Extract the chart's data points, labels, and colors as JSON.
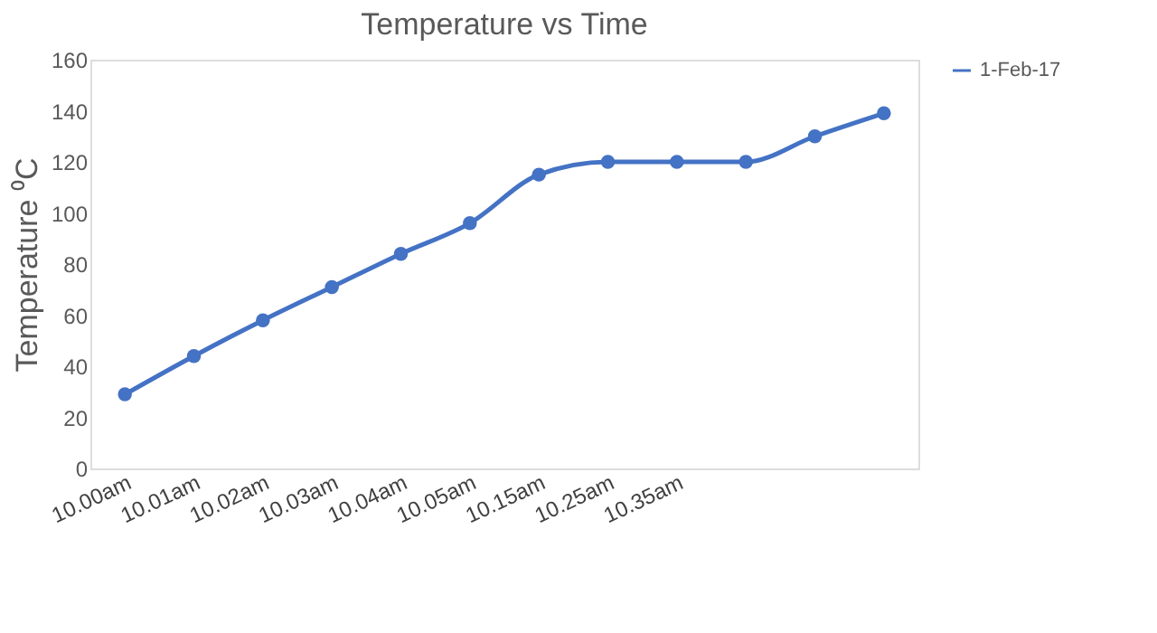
{
  "chart_data": {
    "type": "line",
    "title": "Temperature vs Time",
    "ylabel": "Temperature ⁰C",
    "categories": [
      "10.00am",
      "10.01am",
      "10.02am",
      "10.03am",
      "10.04am",
      "10.05am",
      "10.15am",
      "10.25am",
      "10.35am",
      null,
      null,
      null
    ],
    "series": [
      {
        "name": "1-Feb-17",
        "color": "#4472c4",
        "values": [
          29,
          44,
          58,
          71,
          84,
          96,
          115,
          120,
          120,
          120,
          130,
          139
        ]
      }
    ],
    "ylim": [
      0,
      160
    ],
    "yticks": [
      0,
      20,
      40,
      60,
      80,
      100,
      120,
      140,
      160
    ],
    "grid": false,
    "legend": "right",
    "marker": "circle",
    "line_style": "solid"
  }
}
